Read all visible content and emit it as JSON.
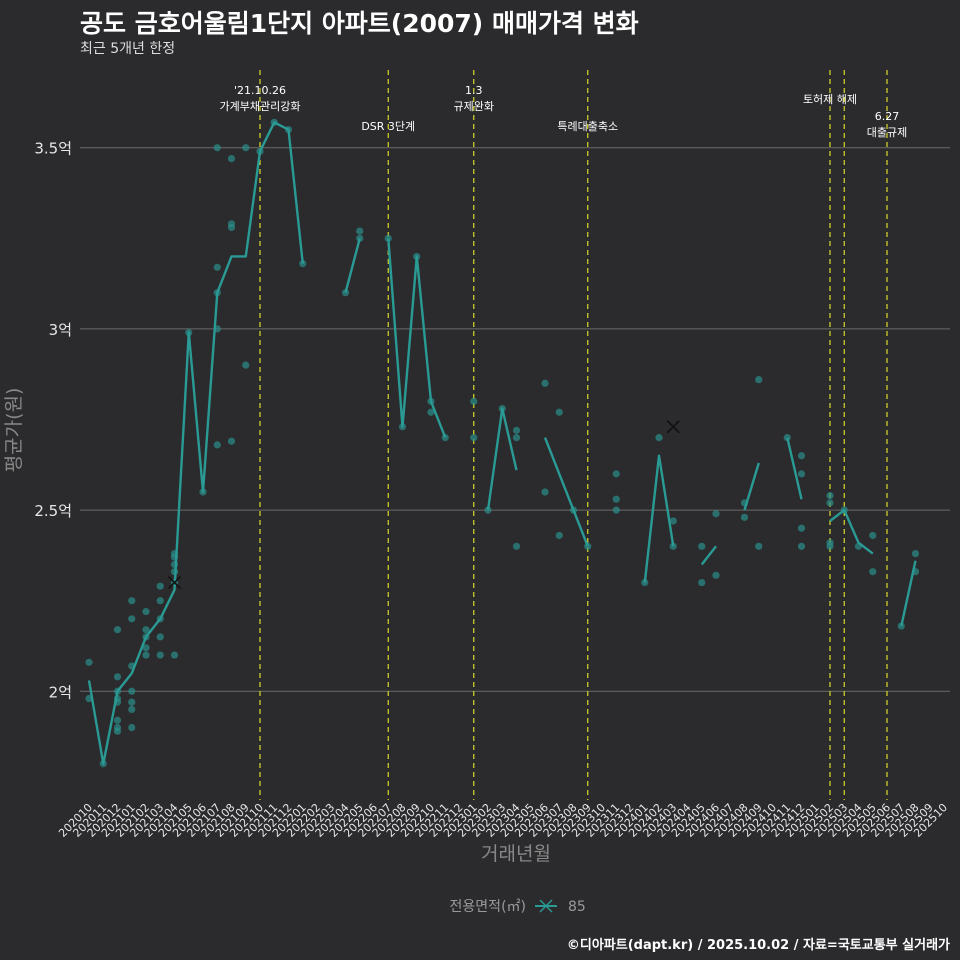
{
  "title": "공도 금호어울림1단지 아파트(2007) 매매가격 변화",
  "subtitle": "최근 5개년 한정",
  "caption": "©디아파트(dapt.kr) / 2025.10.02 / 자료=국토교통부 실거래가",
  "chart_data": {
    "type": "line",
    "title": "공도 금호어울림1단지 아파트(2007) 매매가격 변화",
    "xlabel": "거래년월",
    "ylabel": "평균가(원)",
    "ylim": [
      1.7,
      3.72
    ],
    "y_ticks": [
      {
        "value": 2.0,
        "label": "2억"
      },
      {
        "value": 2.5,
        "label": "2.5억"
      },
      {
        "value": 3.0,
        "label": "3억"
      },
      {
        "value": 3.5,
        "label": "3.5억"
      }
    ],
    "categories": [
      "202010",
      "202011",
      "202012",
      "202101",
      "202102",
      "202103",
      "202104",
      "202105",
      "202106",
      "202107",
      "202108",
      "202109",
      "202110",
      "202111",
      "202112",
      "202201",
      "202202",
      "202203",
      "202204",
      "202205",
      "202206",
      "202207",
      "202208",
      "202209",
      "202210",
      "202211",
      "202212",
      "202301",
      "202302",
      "202303",
      "202304",
      "202305",
      "202306",
      "202307",
      "202308",
      "202309",
      "202310",
      "202311",
      "202312",
      "202401",
      "202402",
      "202403",
      "202404",
      "202405",
      "202406",
      "202407",
      "202408",
      "202409",
      "202410",
      "202411",
      "202412",
      "202501",
      "202502",
      "202503",
      "202504",
      "202505",
      "202506",
      "202507",
      "202508",
      "202509",
      "202510"
    ],
    "legend": {
      "title": "전용면적(㎡)",
      "entries": [
        "85"
      ],
      "color": "#2a9a94"
    },
    "series": [
      {
        "name": "85",
        "line_segments": [
          [
            [
              0,
              2.03
            ],
            [
              1,
              1.8
            ],
            [
              2,
              2.0
            ],
            [
              3,
              2.05
            ],
            [
              4,
              2.15
            ],
            [
              5,
              2.2
            ],
            [
              6,
              2.28
            ],
            [
              7,
              2.99
            ],
            [
              8,
              2.55
            ],
            [
              9,
              3.1
            ],
            [
              10,
              3.2
            ],
            [
              11,
              3.2
            ],
            [
              12,
              3.49
            ],
            [
              13,
              3.57
            ],
            [
              14,
              3.55
            ],
            [
              15,
              3.18
            ]
          ],
          [
            [
              18,
              3.1
            ],
            [
              19,
              3.25
            ]
          ],
          [
            [
              21,
              3.25
            ],
            [
              22,
              2.73
            ],
            [
              23,
              3.2
            ],
            [
              24,
              2.8
            ],
            [
              25,
              2.7
            ]
          ],
          [
            [
              28,
              2.5
            ],
            [
              29,
              2.78
            ],
            [
              30,
              2.61
            ]
          ],
          [
            [
              32,
              2.7
            ],
            [
              34,
              2.5
            ],
            [
              35,
              2.4
            ]
          ],
          [
            [
              39,
              2.3
            ],
            [
              40,
              2.65
            ],
            [
              41,
              2.4
            ]
          ],
          [
            [
              43,
              2.35
            ],
            [
              44,
              2.4
            ]
          ],
          [
            [
              46,
              2.5
            ],
            [
              47,
              2.63
            ]
          ],
          [
            [
              49,
              2.7
            ],
            [
              50,
              2.53
            ]
          ],
          [
            [
              52,
              2.47
            ],
            [
              53,
              2.5
            ],
            [
              54,
              2.41
            ],
            [
              55,
              2.38
            ]
          ],
          [
            [
              57,
              2.18
            ],
            [
              58,
              2.36
            ]
          ]
        ],
        "points": [
          [
            0,
            2.08
          ],
          [
            0,
            1.98
          ],
          [
            1,
            1.8
          ],
          [
            2,
            2.17
          ],
          [
            2,
            2.04
          ],
          [
            2,
            2.0
          ],
          [
            2,
            1.98
          ],
          [
            2,
            1.97
          ],
          [
            2,
            1.92
          ],
          [
            2,
            1.9
          ],
          [
            2,
            1.89
          ],
          [
            3,
            2.25
          ],
          [
            3,
            2.2
          ],
          [
            3,
            2.07
          ],
          [
            3,
            2.0
          ],
          [
            3,
            1.97
          ],
          [
            3,
            1.95
          ],
          [
            3,
            1.9
          ],
          [
            4,
            2.22
          ],
          [
            4,
            2.17
          ],
          [
            4,
            2.15
          ],
          [
            4,
            2.12
          ],
          [
            4,
            2.1
          ],
          [
            5,
            2.29
          ],
          [
            5,
            2.25
          ],
          [
            5,
            2.2
          ],
          [
            5,
            2.15
          ],
          [
            5,
            2.1
          ],
          [
            6,
            2.38
          ],
          [
            6,
            2.37
          ],
          [
            6,
            2.35
          ],
          [
            6,
            2.33
          ],
          [
            6,
            2.3
          ],
          [
            6,
            2.1
          ],
          [
            7,
            2.99
          ],
          [
            8,
            2.55
          ],
          [
            9,
            3.5
          ],
          [
            9,
            3.17
          ],
          [
            9,
            3.1
          ],
          [
            9,
            3.0
          ],
          [
            9,
            2.68
          ],
          [
            10,
            3.47
          ],
          [
            10,
            3.29
          ],
          [
            10,
            3.28
          ],
          [
            10,
            2.69
          ],
          [
            11,
            3.5
          ],
          [
            11,
            2.9
          ],
          [
            12,
            3.49
          ],
          [
            13,
            3.57
          ],
          [
            14,
            3.55
          ],
          [
            15,
            3.18
          ],
          [
            18,
            3.1
          ],
          [
            19,
            3.27
          ],
          [
            19,
            3.25
          ],
          [
            21,
            3.25
          ],
          [
            22,
            2.73
          ],
          [
            23,
            3.2
          ],
          [
            24,
            2.8
          ],
          [
            24,
            2.77
          ],
          [
            25,
            2.7
          ],
          [
            27,
            2.8
          ],
          [
            27,
            2.7
          ],
          [
            28,
            2.5
          ],
          [
            29,
            2.78
          ],
          [
            30,
            2.72
          ],
          [
            30,
            2.7
          ],
          [
            30,
            2.4
          ],
          [
            32,
            2.85
          ],
          [
            32,
            2.55
          ],
          [
            33,
            2.77
          ],
          [
            33,
            2.43
          ],
          [
            34,
            2.5
          ],
          [
            35,
            2.4
          ],
          [
            37,
            2.6
          ],
          [
            37,
            2.53
          ],
          [
            37,
            2.5
          ],
          [
            39,
            2.3
          ],
          [
            40,
            2.7
          ],
          [
            41,
            2.47
          ],
          [
            41,
            2.4
          ],
          [
            43,
            2.4
          ],
          [
            43,
            2.3
          ],
          [
            44,
            2.49
          ],
          [
            44,
            2.32
          ],
          [
            46,
            2.52
          ],
          [
            46,
            2.48
          ],
          [
            47,
            2.86
          ],
          [
            47,
            2.4
          ],
          [
            49,
            2.7
          ],
          [
            50,
            2.65
          ],
          [
            50,
            2.6
          ],
          [
            50,
            2.45
          ],
          [
            50,
            2.4
          ],
          [
            52,
            2.54
          ],
          [
            52,
            2.52
          ],
          [
            52,
            2.41
          ],
          [
            52,
            2.4
          ],
          [
            53,
            2.5
          ],
          [
            54,
            2.4
          ],
          [
            55,
            2.43
          ],
          [
            55,
            2.33
          ],
          [
            57,
            2.18
          ],
          [
            58,
            2.38
          ],
          [
            58,
            2.33
          ]
        ],
        "x_markers": [
          [
            6,
            2.3
          ],
          [
            41,
            2.73
          ]
        ]
      }
    ],
    "events": [
      {
        "x": 12,
        "label": "'21.10.26\n가계부채관리강화",
        "level": 0
      },
      {
        "x": 21,
        "label": "DSR 3단계",
        "level": 1
      },
      {
        "x": 27,
        "label": "1.3\n규제완화",
        "level": 0
      },
      {
        "x": 35,
        "label": "특례대출축소",
        "level": 1
      },
      {
        "x": 52,
        "label": "토허제 해제",
        "level": 0
      },
      {
        "x": 53,
        "label": "",
        "level": 0
      },
      {
        "x": 56,
        "label": "6.27\n대출규제",
        "level": 2
      }
    ]
  }
}
